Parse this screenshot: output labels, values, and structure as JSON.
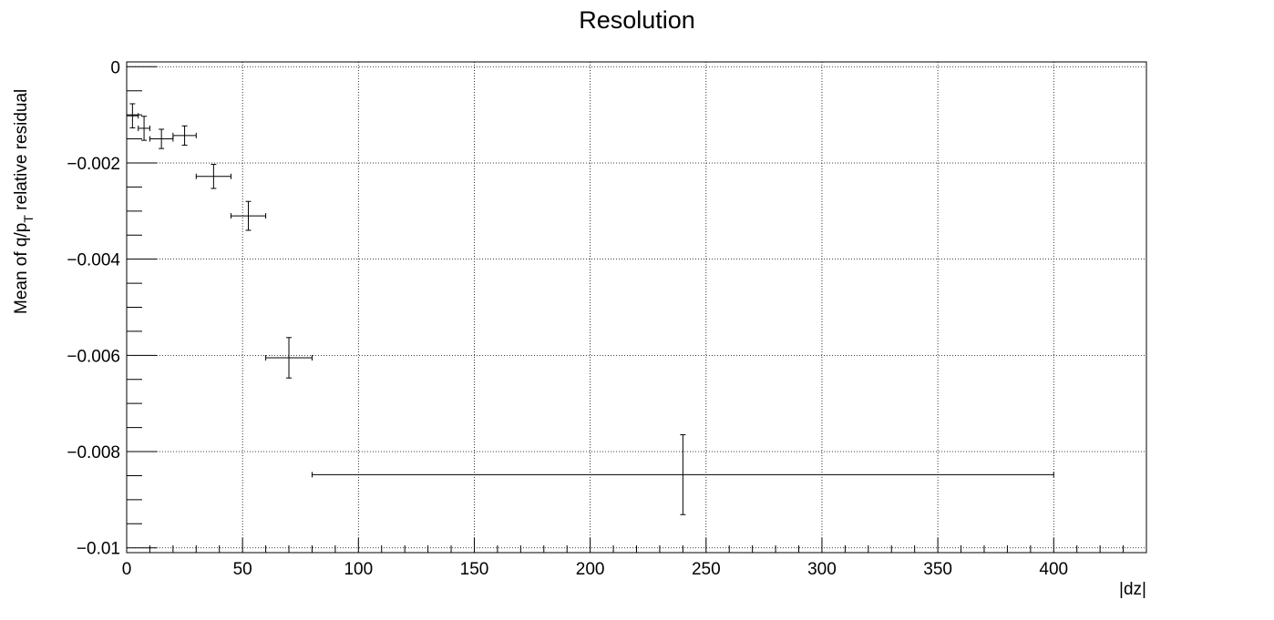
{
  "chart_data": {
    "type": "scatter",
    "title": "Resolution",
    "xlabel": "|dz|",
    "ylabel": {
      "main": "Mean of q/p",
      "subscript": "T",
      "rest": " relative residual"
    },
    "xlim": [
      0,
      440
    ],
    "ylim": [
      -0.0101,
      0.0001
    ],
    "grid": true,
    "x_ticks": [
      0,
      50,
      100,
      150,
      200,
      250,
      300,
      350,
      400
    ],
    "x_tick_labels": [
      "0",
      "50",
      "100",
      "150",
      "200",
      "250",
      "300",
      "350",
      "400"
    ],
    "y_ticks": [
      0,
      -0.002,
      -0.004,
      -0.006,
      -0.008,
      -0.01
    ],
    "y_tick_labels": [
      "0",
      "−0.002",
      "−0.004",
      "−0.006",
      "−0.008",
      "−0.01"
    ],
    "series": [
      {
        "points": [
          {
            "x": 2.5,
            "y": -0.00102,
            "x_low": 0,
            "x_high": 5,
            "y_err": 0.00025
          },
          {
            "x": 7.5,
            "y": -0.00128,
            "x_low": 5,
            "x_high": 10,
            "y_err": 0.00025
          },
          {
            "x": 15,
            "y": -0.0015,
            "x_low": 10,
            "x_high": 20,
            "y_err": 0.0002
          },
          {
            "x": 25,
            "y": -0.00143,
            "x_low": 20,
            "x_high": 30,
            "y_err": 0.0002
          },
          {
            "x": 37.5,
            "y": -0.00228,
            "x_low": 30,
            "x_high": 45,
            "y_err": 0.00025
          },
          {
            "x": 52.5,
            "y": -0.0031,
            "x_low": 45,
            "x_high": 60,
            "y_err": 0.0003
          },
          {
            "x": 70,
            "y": -0.00605,
            "x_low": 60,
            "x_high": 80,
            "y_err": 0.00042
          },
          {
            "x": 240,
            "y": -0.00848,
            "x_low": 80,
            "x_high": 400,
            "y_err": 0.00083
          }
        ]
      }
    ]
  }
}
